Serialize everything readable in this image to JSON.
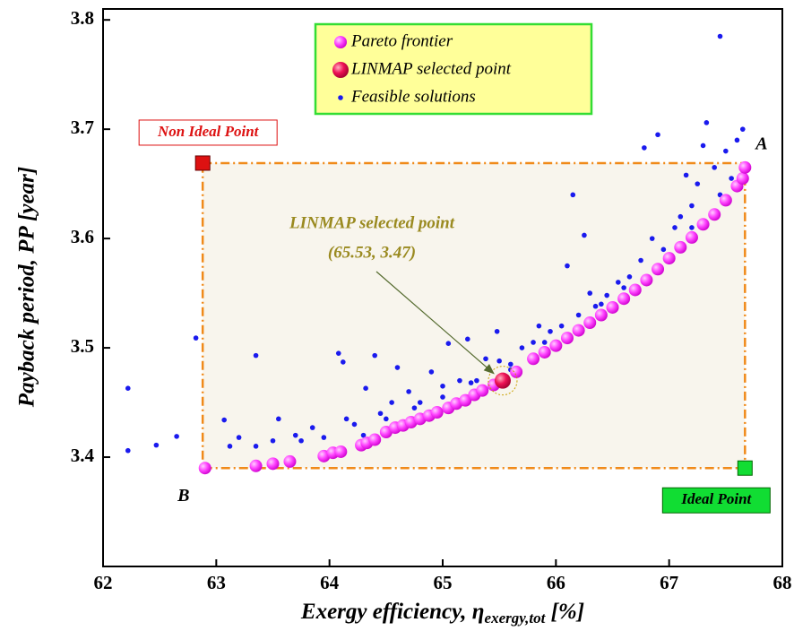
{
  "chart_data": {
    "type": "scatter",
    "x_label": {
      "text": "Exergy efficiency, η",
      "subscript": "exergy,tot",
      "suffix": " [%]"
    },
    "y_label": "Payback period, PP [year]",
    "xlim": [
      62,
      68
    ],
    "xticks": [
      62,
      63,
      64,
      65,
      66,
      67,
      68
    ],
    "ylim": [
      3.3,
      3.81
    ],
    "yticks": [
      3.4,
      3.5,
      3.6,
      3.7,
      3.8
    ],
    "legend": "top-center",
    "series": [
      {
        "name": "Pareto frontier",
        "color": "#ff33ff",
        "marker": "large-circle",
        "x": [
          62.9,
          63.35,
          63.5,
          63.65,
          63.95,
          64.03,
          64.1,
          64.28,
          64.33,
          64.4,
          64.5,
          64.58,
          64.65,
          64.72,
          64.8,
          64.88,
          64.95,
          65.05,
          65.12,
          65.2,
          65.28,
          65.35,
          65.45,
          65.65,
          65.8,
          65.9,
          66.0,
          66.1,
          66.2,
          66.3,
          66.4,
          66.5,
          66.6,
          66.7,
          66.8,
          66.9,
          67.0,
          67.1,
          67.2,
          67.3,
          67.4,
          67.5,
          67.6,
          67.65,
          67.67
        ],
        "values": [
          3.39,
          3.392,
          3.394,
          3.396,
          3.401,
          3.404,
          3.405,
          3.411,
          3.413,
          3.416,
          3.423,
          3.427,
          3.429,
          3.432,
          3.435,
          3.438,
          3.441,
          3.445,
          3.449,
          3.452,
          3.457,
          3.461,
          3.466,
          3.478,
          3.49,
          3.496,
          3.502,
          3.509,
          3.516,
          3.523,
          3.53,
          3.537,
          3.545,
          3.553,
          3.562,
          3.572,
          3.582,
          3.592,
          3.601,
          3.613,
          3.622,
          3.635,
          3.648,
          3.655,
          3.665
        ]
      },
      {
        "name": "LINMAP selected point",
        "color": "#ee1155",
        "marker": "big-circle",
        "x": [
          65.53
        ],
        "values": [
          3.47
        ]
      },
      {
        "name": "Feasible solutions",
        "color": "#1a1aee",
        "marker": "dot",
        "x": [
          62.22,
          62.22,
          62.47,
          62.65,
          62.82,
          63.07,
          63.12,
          63.2,
          63.35,
          63.35,
          63.5,
          63.55,
          63.7,
          63.75,
          63.85,
          63.95,
          64.08,
          64.12,
          64.15,
          64.22,
          64.32,
          64.4,
          64.45,
          64.55,
          64.6,
          64.7,
          64.8,
          64.9,
          65.0,
          65.05,
          65.15,
          65.22,
          65.3,
          65.38,
          65.48,
          65.5,
          65.6,
          65.7,
          65.8,
          65.85,
          65.95,
          66.05,
          66.1,
          66.15,
          66.2,
          66.25,
          66.3,
          66.35,
          66.45,
          66.55,
          66.65,
          66.75,
          66.78,
          66.85,
          66.9,
          66.95,
          67.05,
          67.1,
          67.15,
          67.2,
          67.25,
          67.3,
          67.33,
          67.4,
          67.45,
          67.5,
          67.55,
          67.6,
          67.65,
          64.3,
          64.5,
          64.75,
          65.0,
          65.25,
          65.6,
          65.9,
          66.4,
          66.6,
          66.9,
          67.2,
          67.45
        ],
        "values": [
          3.463,
          3.406,
          3.411,
          3.419,
          3.509,
          3.434,
          3.41,
          3.418,
          3.493,
          3.41,
          3.415,
          3.435,
          3.42,
          3.415,
          3.427,
          3.418,
          3.495,
          3.487,
          3.435,
          3.43,
          3.463,
          3.493,
          3.44,
          3.45,
          3.482,
          3.46,
          3.45,
          3.478,
          3.465,
          3.504,
          3.47,
          3.508,
          3.47,
          3.49,
          3.515,
          3.488,
          3.485,
          3.5,
          3.505,
          3.52,
          3.515,
          3.52,
          3.575,
          3.64,
          3.53,
          3.603,
          3.55,
          3.538,
          3.548,
          3.56,
          3.565,
          3.58,
          3.683,
          3.6,
          3.695,
          3.59,
          3.61,
          3.62,
          3.658,
          3.63,
          3.65,
          3.685,
          3.706,
          3.665,
          3.785,
          3.68,
          3.655,
          3.69,
          3.7,
          3.42,
          3.435,
          3.445,
          3.455,
          3.468,
          3.48,
          3.505,
          3.54,
          3.555,
          3.575,
          3.61,
          3.64
        ]
      }
    ],
    "non_ideal_point": {
      "label": "Non Ideal Point",
      "x": 62.88,
      "y": 3.669,
      "color": "#dd1111"
    },
    "ideal_point": {
      "label": "Ideal Point",
      "x": 67.67,
      "y": 3.39,
      "color": "#11dd33"
    },
    "point_labels": [
      "A",
      "B"
    ],
    "annotation": [
      "LINMAP selected point",
      "(65.53, 3.47)"
    ]
  }
}
